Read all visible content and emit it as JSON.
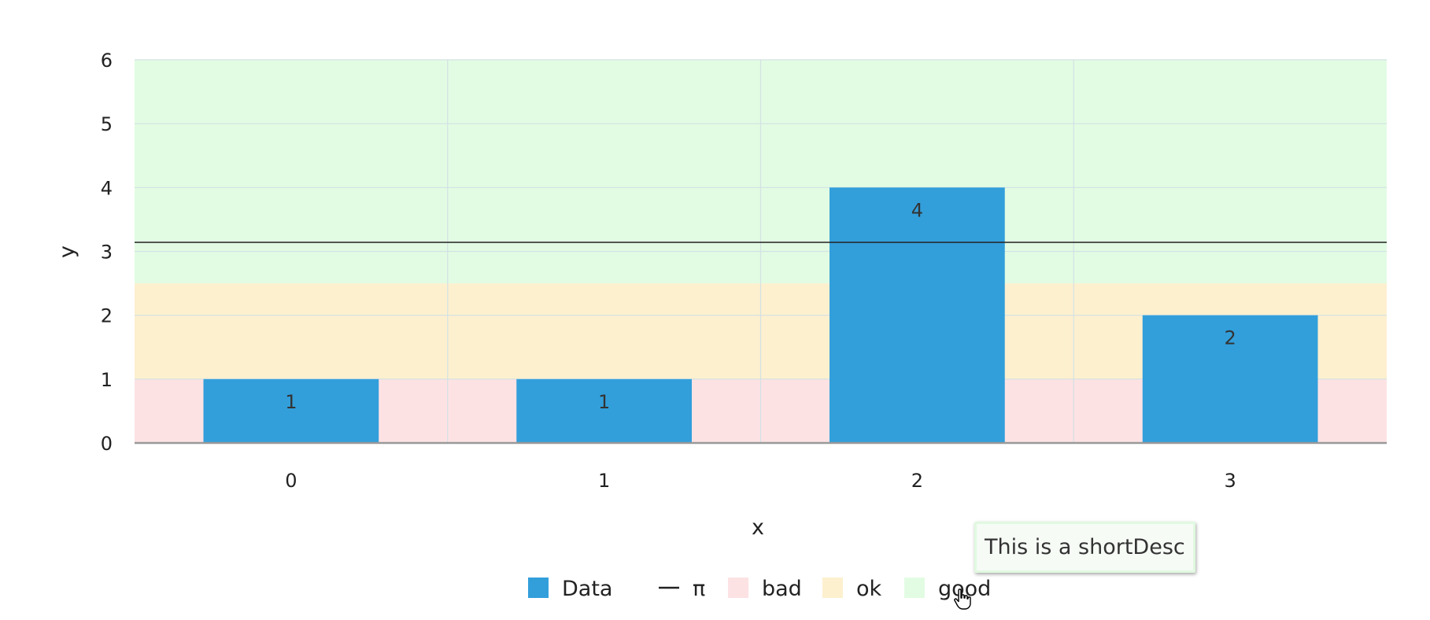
{
  "chart_data": {
    "type": "bar",
    "categories": [
      "0",
      "1",
      "2",
      "3"
    ],
    "series": [
      {
        "name": "Data",
        "values": [
          1,
          1,
          4,
          2
        ],
        "color": "#329fdb"
      }
    ],
    "reference_lines": [
      {
        "name": "π",
        "y": 3.14159,
        "color": "#222222"
      }
    ],
    "bands": [
      {
        "name": "bad",
        "from": 0,
        "to": 1,
        "color": "#fde2e4"
      },
      {
        "name": "ok",
        "from": 1,
        "to": 2.5,
        "color": "#fdf0cf"
      },
      {
        "name": "good",
        "from": 2.5,
        "to": 6,
        "color": "#e2fce3"
      }
    ],
    "xlabel": "x",
    "ylabel": "y",
    "ylim": [
      0,
      6
    ],
    "yticks": [
      "0",
      "1",
      "2",
      "3",
      "4",
      "5",
      "6"
    ],
    "grid": true,
    "legend_placement": "bottom-center"
  },
  "tooltip": {
    "text": "This is a shortDesc"
  }
}
